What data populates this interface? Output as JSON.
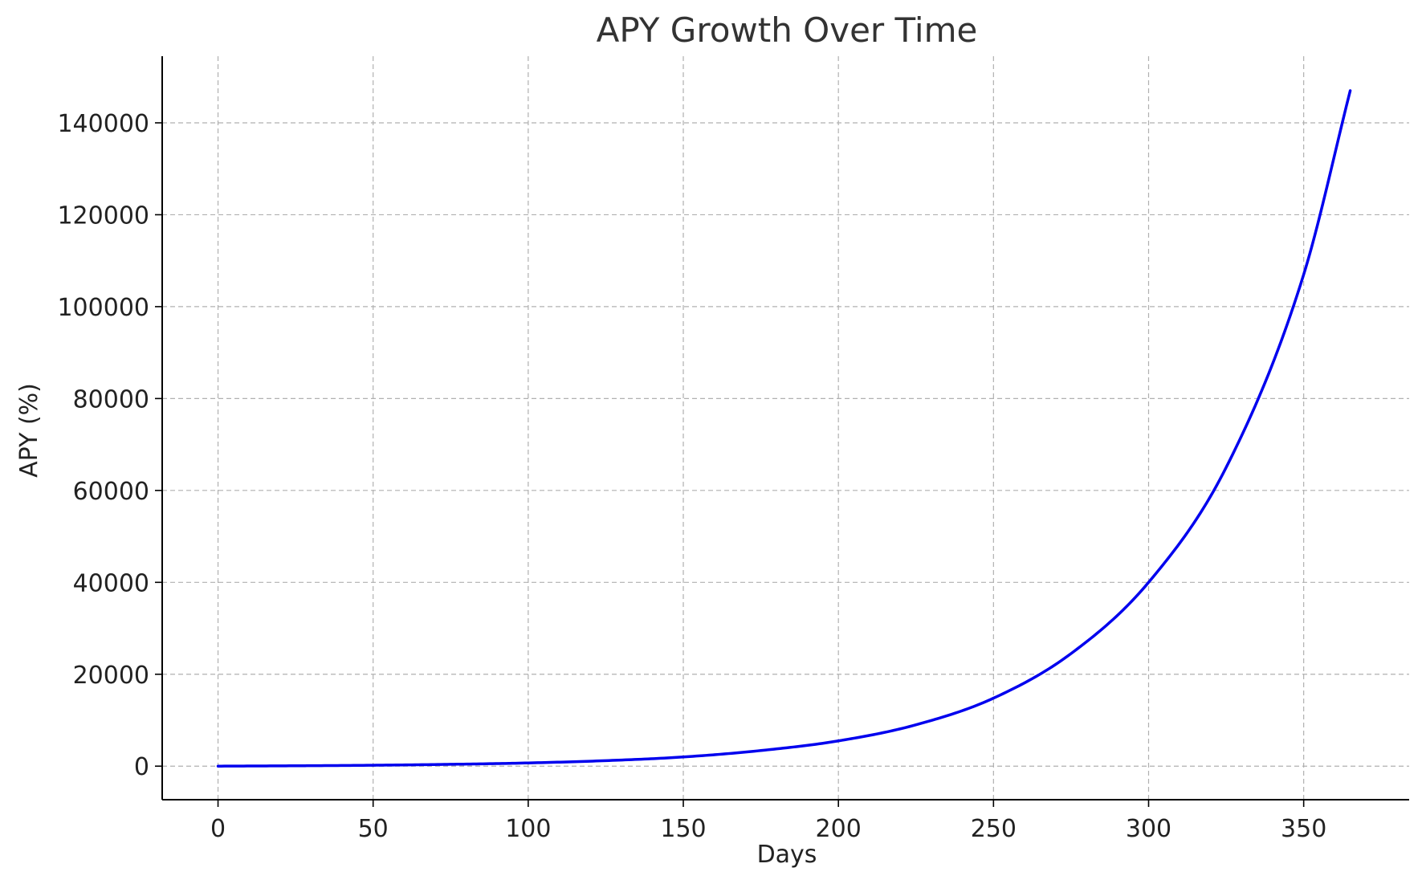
{
  "chart_data": {
    "type": "line",
    "title": "APY Growth Over Time",
    "xlabel": "Days",
    "ylabel": "APY (%)",
    "xlim": [
      -18,
      384
    ],
    "ylim": [
      -7300,
      154500
    ],
    "x_ticks": [
      0,
      50,
      100,
      150,
      200,
      250,
      300,
      350
    ],
    "y_ticks": [
      0,
      20000,
      40000,
      60000,
      80000,
      100000,
      120000,
      140000
    ],
    "grid": true,
    "legend": "none",
    "series": [
      {
        "color": "#0000ee",
        "x": [
          0,
          25,
          50,
          75,
          100,
          125,
          150,
          175,
          200,
          225,
          250,
          275,
          300,
          325,
          350,
          365
        ],
        "y": [
          0,
          80,
          200,
          400,
          700,
          1200,
          2000,
          3400,
          5500,
          9000,
          14800,
          24500,
          40000,
          65000,
          107000,
          147000
        ]
      }
    ]
  }
}
